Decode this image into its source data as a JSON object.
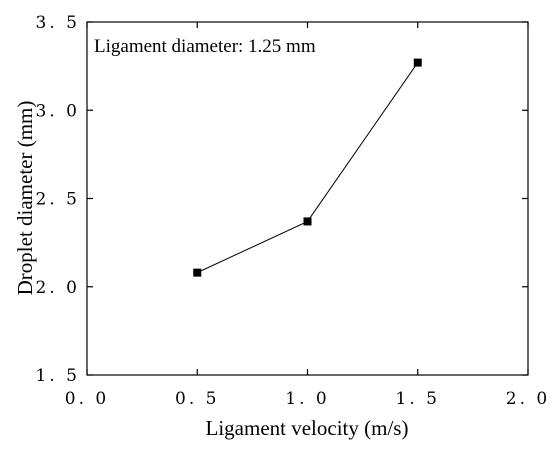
{
  "chart_data": {
    "type": "line",
    "xlabel": "Ligament velocity (m/s)",
    "ylabel": "Droplet diameter (mm)",
    "xlim": [
      0.0,
      2.0
    ],
    "ylim": [
      1.5,
      3.5
    ],
    "xticks": [
      0.0,
      0.5,
      1.0,
      1.5,
      2.0
    ],
    "yticks": [
      1.5,
      2.0,
      2.5,
      3.0,
      3.5
    ],
    "xtick_labels": [
      "0. 0",
      "0. 5",
      "1. 0",
      "1. 5",
      "2. 0"
    ],
    "ytick_labels": [
      "1. 5",
      "2. 0",
      "2. 5",
      "3. 0",
      "3. 5"
    ],
    "annotation": "Ligament diameter: 1.25 mm",
    "grid": false,
    "marker": "square",
    "line_color": "#000000",
    "x": [
      0.5,
      1.0,
      1.5
    ],
    "y": [
      2.08,
      2.37,
      3.27
    ]
  }
}
